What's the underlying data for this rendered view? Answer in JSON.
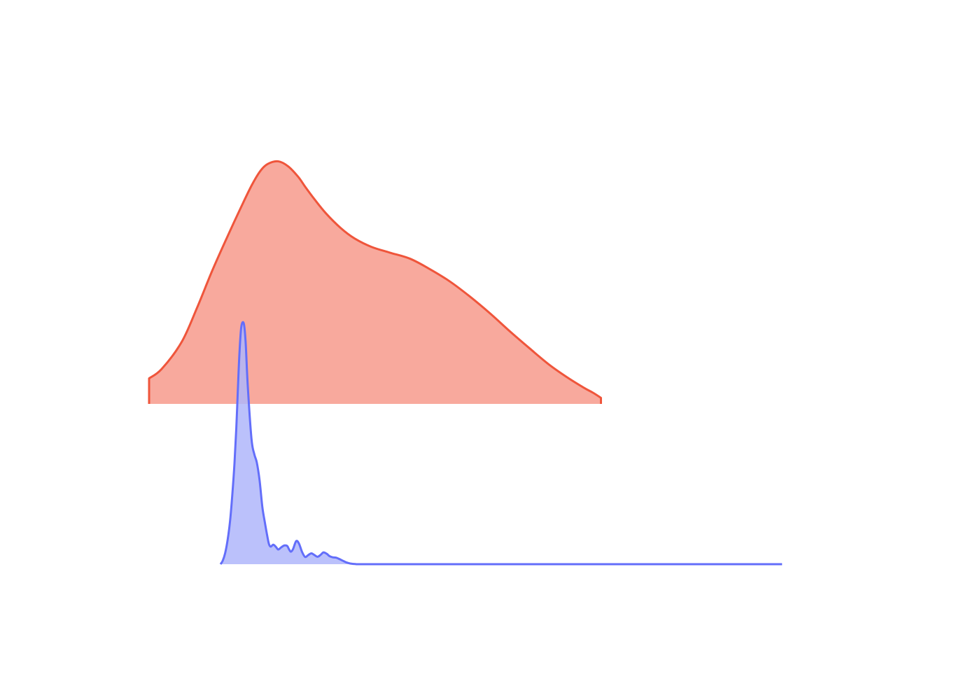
{
  "chart_data": {
    "type": "area",
    "description_style": "ridgeline",
    "axes_visible": false,
    "grid": false,
    "legend": "none",
    "x_range_data": [
      0,
      100
    ],
    "series": [
      {
        "color": "#EF553B",
        "fill_color": "#F8A99D",
        "fill_opacity": 1.0,
        "x": [
          0.0,
          2.73,
          7.07,
          10.4,
          13.7,
          17.1,
          19.9,
          22.3,
          24.2,
          25.8,
          28.0,
          30.2,
          32.4,
          33.9,
          35.9,
          38.4,
          41.6,
          44.5,
          48.2,
          52.2,
          56.6,
          60.6,
          65.1,
          69.5,
          74.1,
          78.4,
          82.6,
          86.8,
          90.7,
          94.4,
          96.4,
          98.1
        ],
        "y": [
          0.101,
          0.138,
          0.245,
          0.38,
          0.527,
          0.666,
          0.776,
          0.866,
          0.923,
          0.95,
          0.96,
          0.94,
          0.898,
          0.859,
          0.81,
          0.754,
          0.696,
          0.656,
          0.622,
          0.599,
          0.575,
          0.537,
          0.487,
          0.427,
          0.357,
          0.286,
          0.22,
          0.156,
          0.106,
          0.064,
          0.044,
          0.024
        ]
      },
      {
        "color": "#636EFA",
        "fill_color": "#AFB6FA",
        "fill_opacity": 0.85,
        "x": [
          15.5,
          16.2,
          17.0,
          17.8,
          18.6,
          19.3,
          20.0,
          20.6,
          21.1,
          21.6,
          22.2,
          23.0,
          23.6,
          24.3,
          25.5,
          26.4,
          27.2,
          28.1,
          29.0,
          29.8,
          30.5,
          31.1,
          31.7,
          32.5,
          33.3,
          34.1,
          34.8,
          35.5,
          36.2,
          37.0,
          37.6,
          38.2,
          38.9,
          39.9,
          40.8,
          41.8,
          42.8,
          43.8,
          44.8,
          45.8,
          46.8,
          47.8,
          48.7,
          49.8,
          50.6,
          51.6,
          52.8,
          53.9,
          55.0,
          56.2,
          57.3,
          58.5,
          59.6,
          60.7,
          61.9,
          63.1,
          64.3,
          65.2,
          66.0,
          67.5,
          69.0,
          70.5,
          72.0,
          73.5,
          75.0,
          80.0,
          85.0,
          90.0,
          95.0,
          100.0,
          105.0,
          110.0,
          115.0,
          120.0,
          125.0,
          130.0,
          135.0,
          140.0,
          145.0,
          150.0,
          155.0,
          160.0,
          165.0,
          170.0,
          175.0,
          180.0,
          182.5,
          185.0,
          187.5,
          190.0,
          192.5,
          195.0,
          196.6
        ],
        "y": [
          0.0,
          0.014,
          0.046,
          0.101,
          0.181,
          0.287,
          0.417,
          0.566,
          0.725,
          0.873,
          0.985,
          1.0,
          0.923,
          0.739,
          0.52,
          0.457,
          0.423,
          0.349,
          0.237,
          0.174,
          0.123,
          0.085,
          0.073,
          0.081,
          0.073,
          0.061,
          0.067,
          0.074,
          0.078,
          0.076,
          0.062,
          0.052,
          0.063,
          0.096,
          0.086,
          0.051,
          0.03,
          0.038,
          0.045,
          0.038,
          0.031,
          0.039,
          0.049,
          0.043,
          0.034,
          0.029,
          0.027,
          0.021,
          0.014,
          0.007,
          0.003,
          0.001,
          0.0,
          0.0,
          0.0,
          0.0,
          0.0,
          0.0,
          0.0,
          0.0,
          0.0,
          0.0,
          0.0,
          0.0,
          0.0,
          0.0,
          0.0,
          0.0,
          0.0,
          0.0,
          0.0,
          0.0,
          0.0,
          0.0,
          0.0,
          0.0,
          0.0,
          0.0,
          0.0,
          0.0,
          0.0,
          0.0,
          0.0,
          0.0,
          0.0,
          0.0,
          0.0,
          0.0,
          0.0,
          0.0,
          0.0,
          0.0,
          0.0
        ]
      }
    ]
  }
}
